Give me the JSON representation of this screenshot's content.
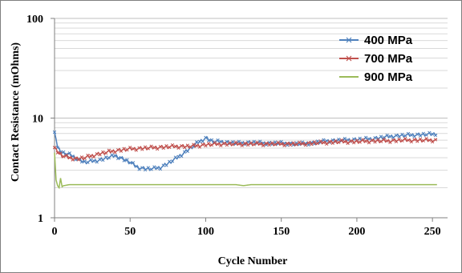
{
  "chart_data": {
    "type": "line",
    "title": "",
    "xlabel": "Cycle Number",
    "ylabel": "Contact Resistance (mOhms)",
    "xlim": [
      0,
      260
    ],
    "ylim": [
      1,
      100
    ],
    "y_scale": "log",
    "x_ticks": [
      "0",
      "50",
      "100",
      "150",
      "200",
      "250"
    ],
    "y_ticks": [
      "1",
      "10",
      "100"
    ],
    "grid": "horizontal minor and major gridlines",
    "legend_position": "top-right",
    "series": [
      {
        "name": "400 MPa",
        "color": "#4f81bd",
        "marker": "x",
        "x": [
          0,
          2,
          5,
          10,
          15,
          20,
          25,
          30,
          35,
          40,
          45,
          50,
          55,
          60,
          65,
          70,
          75,
          80,
          85,
          90,
          95,
          100,
          105,
          110,
          115,
          120,
          130,
          140,
          150,
          160,
          170,
          180,
          190,
          200,
          210,
          220,
          230,
          240,
          250,
          253
        ],
        "values": [
          7.5,
          5.0,
          4.5,
          4.3,
          3.9,
          3.6,
          3.7,
          3.8,
          4.0,
          4.2,
          3.9,
          3.6,
          3.2,
          3.1,
          3.1,
          3.2,
          3.5,
          3.9,
          4.4,
          5.0,
          5.7,
          6.3,
          5.8,
          5.8,
          5.7,
          5.6,
          5.7,
          5.6,
          5.6,
          5.5,
          5.6,
          5.9,
          6.0,
          6.1,
          6.2,
          6.5,
          6.7,
          6.8,
          6.9,
          7.0
        ]
      },
      {
        "name": "700 MPa",
        "color": "#c0504d",
        "marker": "x",
        "x": [
          0,
          2,
          5,
          10,
          15,
          20,
          25,
          30,
          40,
          50,
          60,
          70,
          80,
          90,
          100,
          110,
          120,
          130,
          140,
          150,
          160,
          170,
          180,
          190,
          200,
          210,
          220,
          230,
          240,
          250,
          253
        ],
        "values": [
          5.0,
          4.6,
          4.2,
          4.0,
          3.9,
          4.0,
          4.2,
          4.4,
          4.7,
          4.9,
          5.0,
          5.1,
          5.2,
          5.2,
          5.4,
          5.5,
          5.5,
          5.5,
          5.5,
          5.5,
          5.5,
          5.6,
          5.7,
          5.8,
          5.8,
          5.9,
          5.9,
          6.0,
          6.0,
          6.0,
          6.0
        ]
      },
      {
        "name": "900 MPa",
        "color": "#9bbb59",
        "marker": "none",
        "x": [
          0,
          1,
          2,
          3,
          4,
          5,
          6,
          10,
          20,
          30,
          40,
          50,
          60,
          70,
          80,
          90,
          100,
          110,
          120,
          125,
          130,
          140,
          150,
          160,
          170,
          180,
          190,
          200,
          210,
          220,
          230,
          240,
          250,
          253
        ],
        "values": [
          4.5,
          2.4,
          2.1,
          2.0,
          2.5,
          2.05,
          2.1,
          2.15,
          2.15,
          2.15,
          2.15,
          2.15,
          2.15,
          2.15,
          2.15,
          2.15,
          2.15,
          2.15,
          2.15,
          2.1,
          2.15,
          2.15,
          2.15,
          2.15,
          2.15,
          2.15,
          2.15,
          2.15,
          2.15,
          2.15,
          2.15,
          2.15,
          2.15,
          2.15
        ]
      }
    ]
  }
}
